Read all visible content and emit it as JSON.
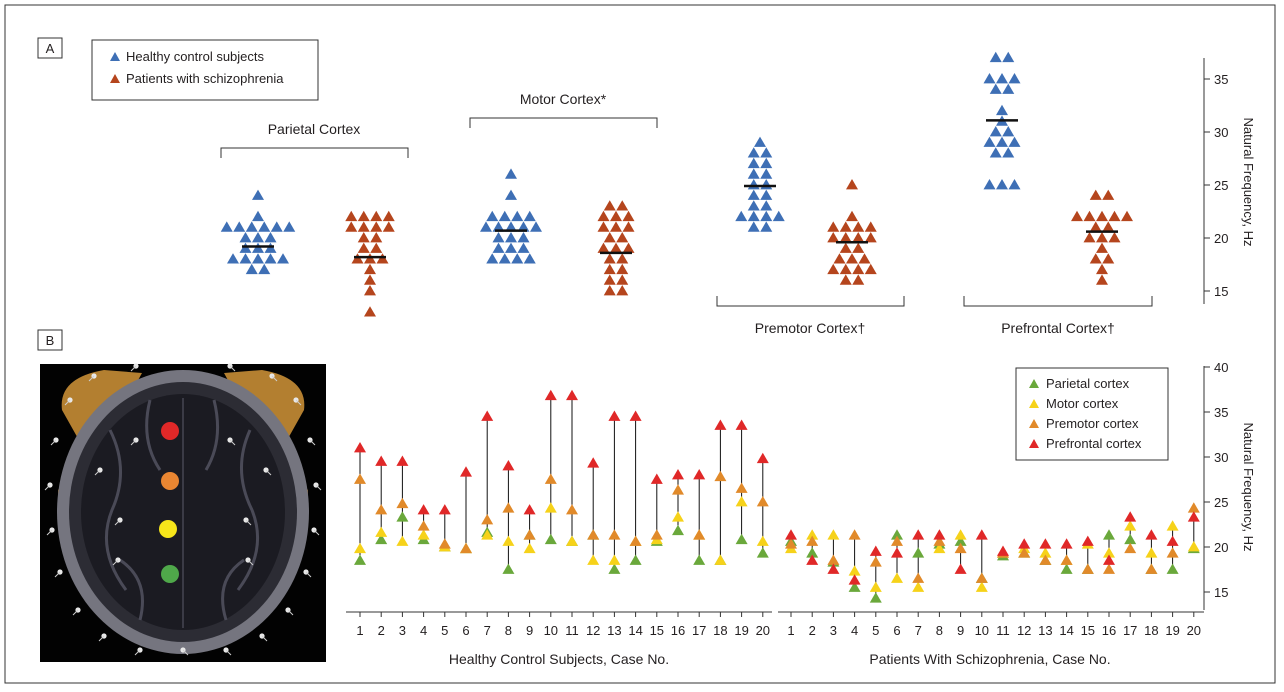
{
  "colors": {
    "healthy": "#3e6fb5",
    "patients": "#b5451d",
    "parietal": "#6aa83b",
    "motor": "#f6d21a",
    "premotor": "#e18a2a",
    "prefrontal": "#e02828"
  },
  "chart_data": [
    {
      "panel": "A",
      "type": "scatter",
      "ylabel": "Natural Frequency, Hz",
      "ylim": [
        13.5,
        37.5
      ],
      "yticks": [
        15,
        20,
        25,
        30,
        35
      ],
      "legend": {
        "position": "top-left",
        "entries": [
          "Healthy control subjects",
          "Patients with schizophrenia"
        ]
      },
      "groups": [
        {
          "name": "Parietal Cortex",
          "healthy": {
            "values": [
              24,
              22,
              21,
              21,
              21,
              21,
              21,
              21,
              20,
              20,
              20,
              19,
              19,
              19,
              18,
              18,
              18,
              18,
              18,
              17,
              17
            ],
            "mean": 19.2
          },
          "patients": {
            "values": [
              22,
              22,
              22,
              22,
              21,
              21,
              21,
              21,
              20,
              20,
              19,
              19,
              18,
              18,
              18,
              17,
              16,
              15,
              13
            ],
            "mean": 18.2
          }
        },
        {
          "name": "Motor Cortex*",
          "healthy": {
            "values": [
              26,
              24,
              22,
              22,
              22,
              22,
              21,
              21,
              21,
              21,
              21,
              20,
              20,
              20,
              19,
              19,
              19,
              18,
              18,
              18,
              18
            ],
            "mean": 20.7
          },
          "patients": {
            "values": [
              23,
              23,
              22,
              22,
              22,
              21,
              21,
              21,
              20,
              20,
              19,
              19,
              19,
              18,
              18,
              17,
              17,
              16,
              16,
              15,
              15
            ],
            "mean": 18.6
          }
        },
        {
          "name": "Premotor Cortex†",
          "healthy": {
            "values": [
              29,
              28,
              28,
              27,
              27,
              26,
              26,
              25,
              25,
              24,
              24,
              23,
              23,
              22,
              22,
              22,
              22,
              21,
              21
            ],
            "mean": 24.9
          },
          "patients": {
            "values": [
              25,
              22,
              21,
              21,
              21,
              21,
              20,
              20,
              20,
              20,
              19,
              19,
              18,
              18,
              18,
              17,
              17,
              17,
              17,
              16,
              16
            ],
            "mean": 19.6
          }
        },
        {
          "name": "Prefrontal Cortex†",
          "healthy": {
            "values": [
              37,
              37,
              35,
              35,
              35,
              34,
              34,
              32,
              31,
              30,
              30,
              29,
              29,
              29,
              28,
              28,
              25,
              25,
              25
            ],
            "mean": 31.1
          },
          "patients": {
            "values": [
              24,
              24,
              22,
              22,
              22,
              22,
              22,
              21,
              21,
              20,
              20,
              20,
              19,
              18,
              18,
              17,
              16
            ],
            "mean": 20.6
          }
        }
      ]
    },
    {
      "panel": "B",
      "type": "scatter",
      "ylabel": "Natural Frequency, Hz",
      "ylim": [
        13,
        40
      ],
      "yticks": [
        15,
        20,
        25,
        30,
        35,
        40
      ],
      "legend": {
        "position": "top-right",
        "entries": [
          "Parietal cortex",
          "Motor cortex",
          "Premotor cortex",
          "Prefrontal cortex"
        ]
      },
      "x": [
        1,
        2,
        3,
        4,
        5,
        6,
        7,
        8,
        9,
        10,
        11,
        12,
        13,
        14,
        15,
        16,
        17,
        18,
        19,
        20
      ],
      "groups": [
        {
          "xlabel": "Healthy Control Subjects, Case No.",
          "parietal": [
            18.5,
            20.8,
            23.3,
            20.8,
            20.0,
            19.8,
            21.6,
            17.5,
            21.3,
            20.8,
            20.6,
            21.3,
            17.5,
            18.5,
            20.6,
            21.8,
            18.5,
            18.5,
            20.8,
            19.3
          ],
          "motor": [
            19.8,
            21.6,
            20.6,
            21.3,
            20.0,
            19.8,
            21.3,
            20.6,
            19.8,
            24.3,
            20.6,
            18.5,
            18.5,
            20.6,
            20.8,
            23.3,
            21.3,
            18.5,
            25.0,
            20.6
          ],
          "premotor": [
            27.5,
            24.1,
            24.8,
            22.3,
            20.3,
            19.8,
            23.0,
            24.3,
            21.3,
            27.5,
            24.1,
            21.3,
            21.3,
            20.6,
            21.3,
            26.3,
            21.3,
            27.8,
            26.5,
            25.0
          ],
          "prefrontal": [
            31.0,
            29.5,
            29.5,
            24.1,
            24.1,
            28.3,
            34.5,
            29.0,
            24.1,
            36.8,
            36.8,
            29.3,
            34.5,
            34.5,
            27.5,
            28.0,
            28.0,
            33.5,
            33.5,
            29.8
          ]
        },
        {
          "xlabel": "Patients With Schizophrenia, Case No.",
          "parietal": [
            20.6,
            19.3,
            18.3,
            15.5,
            14.3,
            21.3,
            19.3,
            20.3,
            20.6,
            16.5,
            19.0,
            19.3,
            18.5,
            17.5,
            17.5,
            21.3,
            20.8,
            17.5,
            17.5,
            19.8
          ],
          "motor": [
            19.8,
            21.3,
            21.3,
            17.3,
            15.5,
            16.5,
            15.5,
            19.8,
            21.3,
            15.5,
            19.3,
            19.8,
            19.3,
            18.5,
            20.3,
            19.3,
            22.3,
            19.3,
            22.3,
            20.0
          ],
          "premotor": [
            20.3,
            20.6,
            18.5,
            21.3,
            18.3,
            20.6,
            16.5,
            20.6,
            19.8,
            16.5,
            19.3,
            19.3,
            18.5,
            18.5,
            17.5,
            17.5,
            19.8,
            17.5,
            19.3,
            24.3
          ],
          "prefrontal": [
            21.3,
            18.5,
            17.5,
            16.3,
            19.5,
            19.3,
            21.3,
            21.3,
            17.5,
            21.3,
            19.5,
            20.3,
            20.3,
            20.3,
            20.6,
            18.5,
            23.3,
            21.3,
            20.6,
            23.3
          ]
        }
      ]
    }
  ]
}
